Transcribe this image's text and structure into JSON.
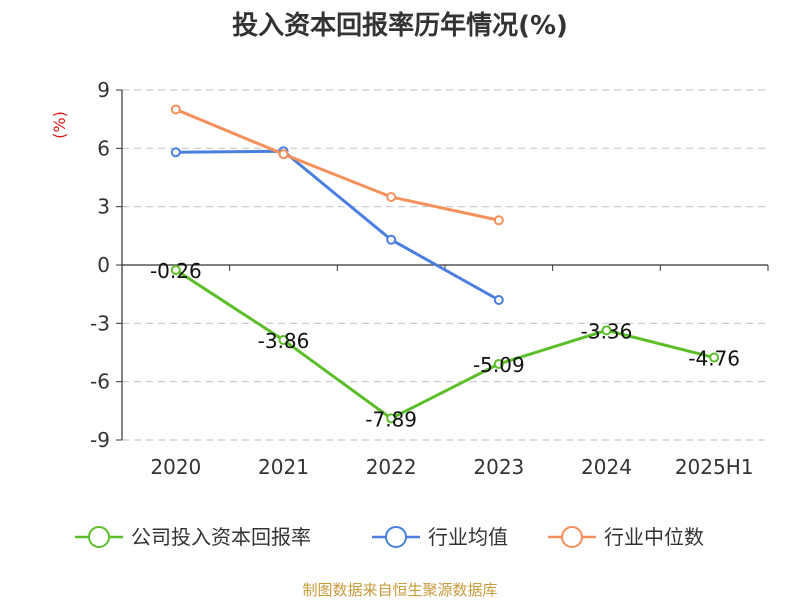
{
  "chart_data": {
    "type": "line",
    "title": "投入资本回报率历年情况(%)",
    "ylabel": "(%)",
    "categories": [
      "2020",
      "2021",
      "2022",
      "2023",
      "2024",
      "2025H1"
    ],
    "ylim": [
      -9,
      9
    ],
    "yticks": [
      "9",
      "6",
      "3",
      "0",
      "-3",
      "-6",
      "-9"
    ],
    "grid": true,
    "legend_position": "bottom",
    "series": [
      {
        "name": "公司投入资本回报率",
        "color": "#5cbf2a",
        "values": [
          -0.26,
          -3.86,
          -7.89,
          -5.09,
          -3.36,
          -4.76
        ],
        "labels": [
          "-0.26",
          "-3.86",
          "-7.89",
          "-5.09",
          "-3.36",
          "-4.76"
        ]
      },
      {
        "name": "行业均值",
        "color": "#4a7fe0",
        "values": [
          5.8,
          5.85,
          1.3,
          -1.8,
          null,
          null
        ]
      },
      {
        "name": "行业中位数",
        "color": "#f5905a",
        "values": [
          8.0,
          5.7,
          3.5,
          2.3,
          null,
          null
        ]
      }
    ]
  },
  "colors": {
    "ylabel": "#e0191a",
    "source": "#c79a3a",
    "grid": "#c8c8c8",
    "axis": "#333333"
  },
  "source": "制图数据来自恒生聚源数据库"
}
